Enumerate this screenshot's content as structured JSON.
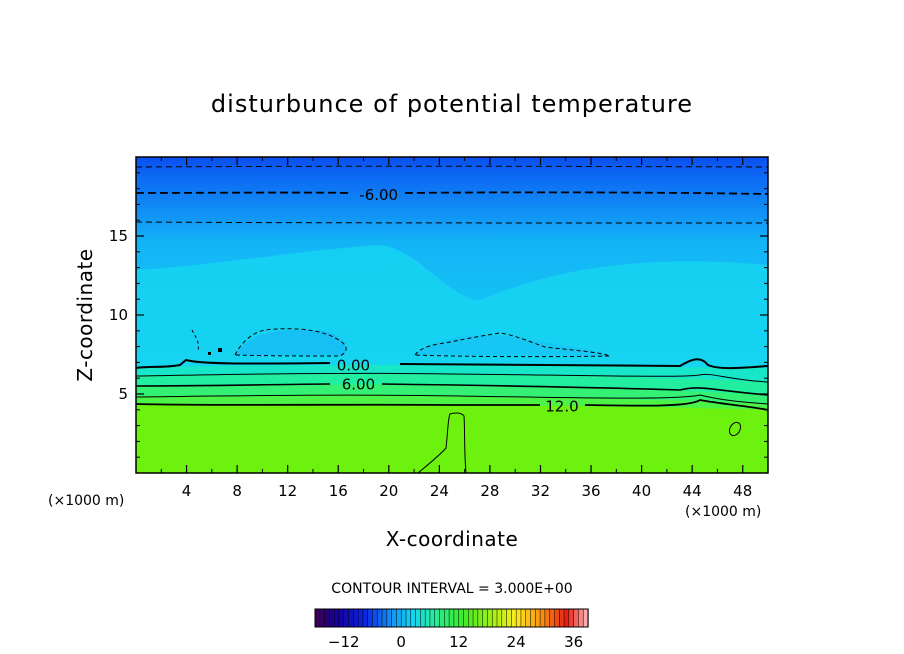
{
  "chart_data": {
    "type": "contour",
    "title": "disturbunce of potential temperature",
    "xlabel": "X-coordinate",
    "ylabel": "Z-coordinate",
    "x_unit": "(×1000 m)",
    "y_unit": "(×1000 m)",
    "xlim": [
      0,
      50
    ],
    "ylim": [
      0,
      20
    ],
    "x_ticks": [
      4,
      8,
      12,
      16,
      20,
      24,
      28,
      32,
      36,
      40,
      44,
      48
    ],
    "y_ticks": [
      5,
      10,
      15
    ],
    "contour_interval_label": "CONTOUR INTERVAL = 3.000E+00",
    "contour_interval": 3.0,
    "contour_labels": [
      {
        "text": "-6.00",
        "x": 19.2,
        "z": 17.6
      },
      {
        "text": "0.00",
        "x": 17.2,
        "z": 6.8
      },
      {
        "text": "6.00",
        "x": 17.6,
        "z": 5.6
      },
      {
        "text": "12.0",
        "x": 33.7,
        "z": 4.2
      }
    ],
    "colorbar": {
      "ticks": [
        -12,
        0,
        12,
        24,
        36
      ],
      "range": [
        -18,
        39
      ]
    }
  },
  "colors": {
    "top_blue": "#0a5cf0",
    "mid_blue": "#12a8f6",
    "cyan": "#14d2f2",
    "green": "#2ef07a",
    "lime": "#6cf20e"
  }
}
